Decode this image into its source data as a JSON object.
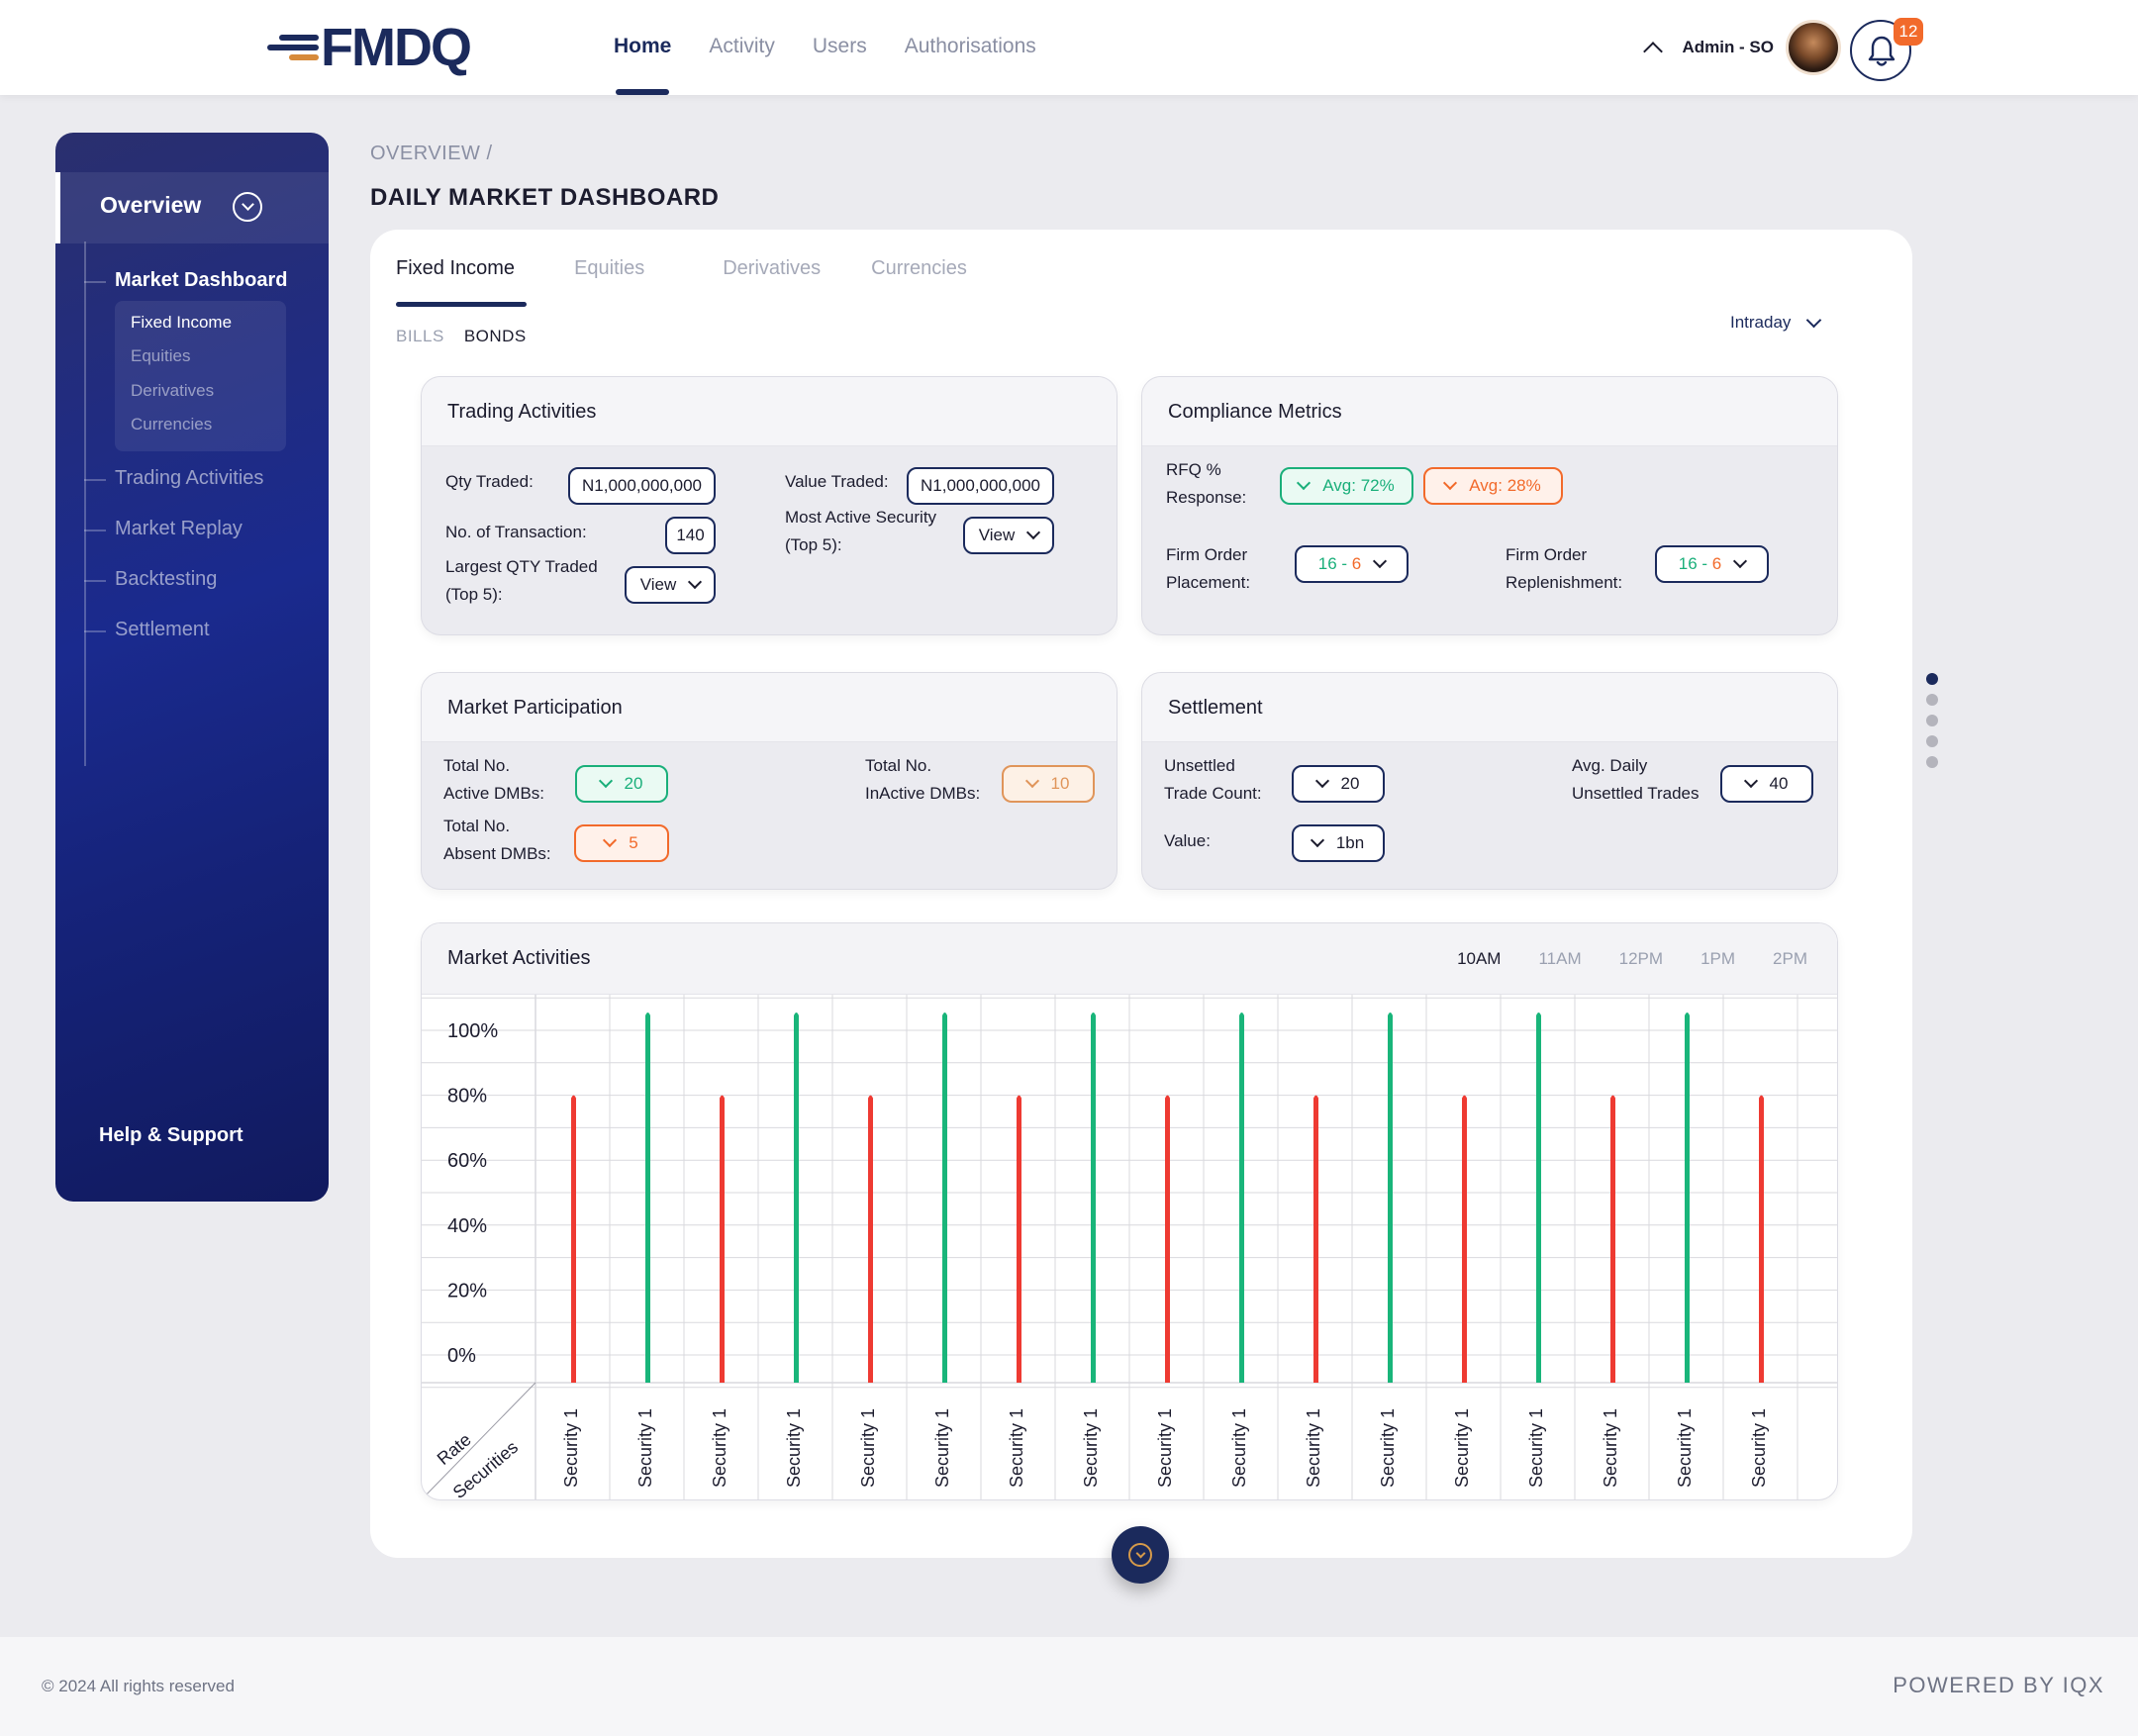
{
  "header": {
    "logo": "FMDQ",
    "nav": [
      {
        "label": "Home",
        "active": true
      },
      {
        "label": "Activity",
        "active": false
      },
      {
        "label": "Users",
        "active": false
      },
      {
        "label": "Authorisations",
        "active": false
      }
    ],
    "user_name": "Admin - SO",
    "notifications": "12"
  },
  "sidebar": {
    "overview": "Overview",
    "items": [
      {
        "label": "Market Dashboard",
        "active": true
      },
      {
        "label": "Trading Activities",
        "active": false
      },
      {
        "label": "Market Replay",
        "active": false
      },
      {
        "label": "Backtesting",
        "active": false
      },
      {
        "label": "Settlement",
        "active": false
      }
    ],
    "sub_items": [
      {
        "label": "Fixed Income",
        "active": true
      },
      {
        "label": "Equities",
        "active": false
      },
      {
        "label": "Derivatives",
        "active": false
      },
      {
        "label": "Currencies",
        "active": false
      }
    ],
    "help": "Help & Support"
  },
  "breadcrumb": "OVERVIEW /",
  "page_title": "DAILY MARKET DASHBOARD",
  "tabs": [
    "Fixed Income",
    "Equities",
    "Derivatives",
    "Currencies"
  ],
  "subtabs": [
    "BILLS",
    "BONDS"
  ],
  "period": "Intraday",
  "trading": {
    "title": "Trading Activities",
    "qty_label": "Qty Traded:",
    "qty_value": "N1,000,000,000",
    "value_label": "Value Traded:",
    "value_value": "N1,000,000,000",
    "tx_label": "No. of Transaction:",
    "tx_value": "140",
    "active_label_1": "Most Active Security",
    "active_label_2": "(Top 5):",
    "largest_label_1": "Largest QTY Traded",
    "largest_label_2": "(Top 5):",
    "view": "View"
  },
  "compliance": {
    "title": "Compliance Metrics",
    "rfq_label_1": "RFQ %",
    "rfq_label_2": "Response:",
    "avg_green": "Avg: 72%",
    "avg_orange": "Avg: 28%",
    "placement_label_1": "Firm Order",
    "placement_label_2": "Placement:",
    "replenish_label_1": "Firm Order",
    "replenish_label_2": "Replenishment:",
    "green_num": "16",
    "sep": "-",
    "orange_num": "6"
  },
  "participation": {
    "title": "Market Participation",
    "active_label_1": "Total No.",
    "active_label_2": "Active DMBs:",
    "active_value": "20",
    "inactive_label_1": "Total No.",
    "inactive_label_2": "InActive DMBs:",
    "inactive_value": "10",
    "absent_label_1": "Total No.",
    "absent_label_2": "Absent DMBs:",
    "absent_value": "5"
  },
  "settlement": {
    "title": "Settlement",
    "unsettled_label_1": "Unsettled",
    "unsettled_label_2": "Trade Count:",
    "unsettled_value": "20",
    "avg_label_1": "Avg. Daily",
    "avg_label_2": "Unsettled Trades",
    "avg_value": "40",
    "value_label": "Value:",
    "value_value": "1bn"
  },
  "market_activities": {
    "title": "Market Activities",
    "times": [
      {
        "label": "10AM",
        "active": true
      },
      {
        "label": "11AM",
        "active": false
      },
      {
        "label": "12PM",
        "active": false
      },
      {
        "label": "1PM",
        "active": false
      },
      {
        "label": "2PM",
        "active": false
      }
    ]
  },
  "chart_data": {
    "type": "bar",
    "xlabel": "Securities",
    "ylabel": "Rate",
    "ylim": [
      0,
      100
    ],
    "yticks": [
      "100%",
      "80%",
      "60%",
      "40%",
      "20%",
      "0%"
    ],
    "categories": [
      "Security 1",
      "Security 1",
      "Security 1",
      "Security 1",
      "Security 1",
      "Security 1",
      "Security 1",
      "Security 1",
      "Security 1",
      "Security 1",
      "Security 1",
      "Security 1",
      "Security 1",
      "Security 1",
      "Security 1",
      "Security 1",
      "Security 1"
    ],
    "values": [
      80,
      100,
      80,
      100,
      80,
      100,
      80,
      100,
      80,
      100,
      80,
      100,
      80,
      100,
      80,
      100,
      80
    ],
    "colors": {
      "green": "#19b57a",
      "red": "#ee3a32"
    },
    "grid": true
  },
  "footer": {
    "copyright": "© 2024 All rights reserved",
    "powered": "POWERED BY IQX"
  }
}
